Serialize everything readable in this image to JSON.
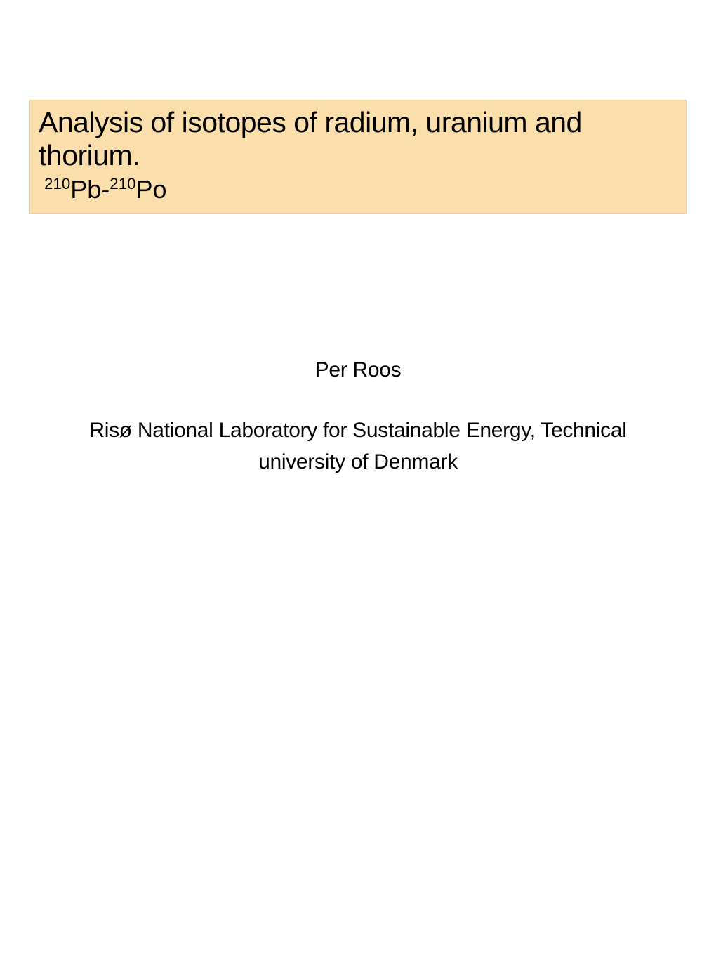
{
  "slide": {
    "title_line1": "Analysis of isotopes of radium, uranium and thorium.",
    "isotope1_mass": "210",
    "isotope1_element": "Pb",
    "isotope2_mass": "210",
    "isotope2_element": "Po",
    "author": "Per Roos",
    "affiliation_line1": "Risø National Laboratory for Sustainable Energy, Technical",
    "affiliation_line2": "university of Denmark",
    "colors": {
      "title_background": "#fadfad",
      "title_border": "#e8d0a0",
      "page_background": "#ffffff",
      "text": "#000000"
    },
    "typography": {
      "title_fontsize": 41,
      "subtitle_fontsize": 36,
      "body_fontsize": 30,
      "font_family": "Arial",
      "font_stretch": "condensed"
    }
  }
}
